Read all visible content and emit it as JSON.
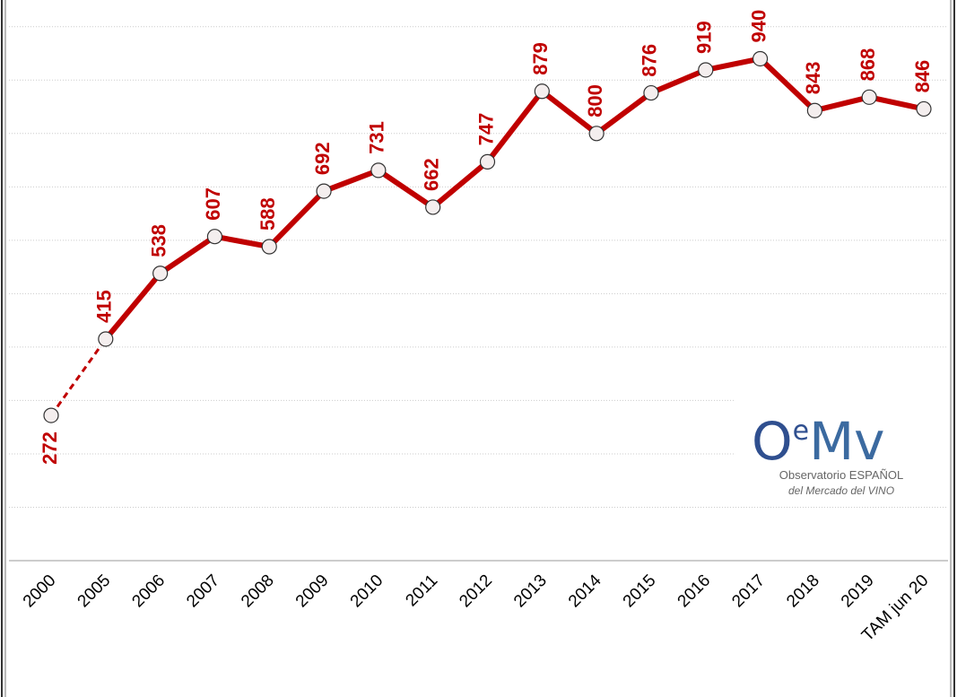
{
  "chart_data": {
    "type": "line",
    "categories": [
      "2000",
      "2005",
      "2006",
      "2007",
      "2008",
      "2009",
      "2010",
      "2011",
      "2012",
      "2013",
      "2014",
      "2015",
      "2016",
      "2017",
      "2018",
      "2019",
      "TAM jun 20"
    ],
    "values": [
      272,
      415,
      538,
      607,
      588,
      692,
      731,
      662,
      747,
      879,
      800,
      876,
      919,
      940,
      843,
      868,
      846
    ],
    "color": "#c00000",
    "ylim": [
      0,
      1050
    ],
    "yticks": [
      0,
      100,
      200,
      300,
      400,
      500,
      600,
      700,
      800,
      900,
      1000
    ],
    "grid": true,
    "dashed_segments": [
      0
    ],
    "labels_below": [
      0
    ]
  },
  "logo": {
    "mark": [
      "O",
      "e",
      "Mv"
    ],
    "lines": [
      "Observatorio ESPAÑOL",
      "del Mercado del VINO"
    ]
  }
}
